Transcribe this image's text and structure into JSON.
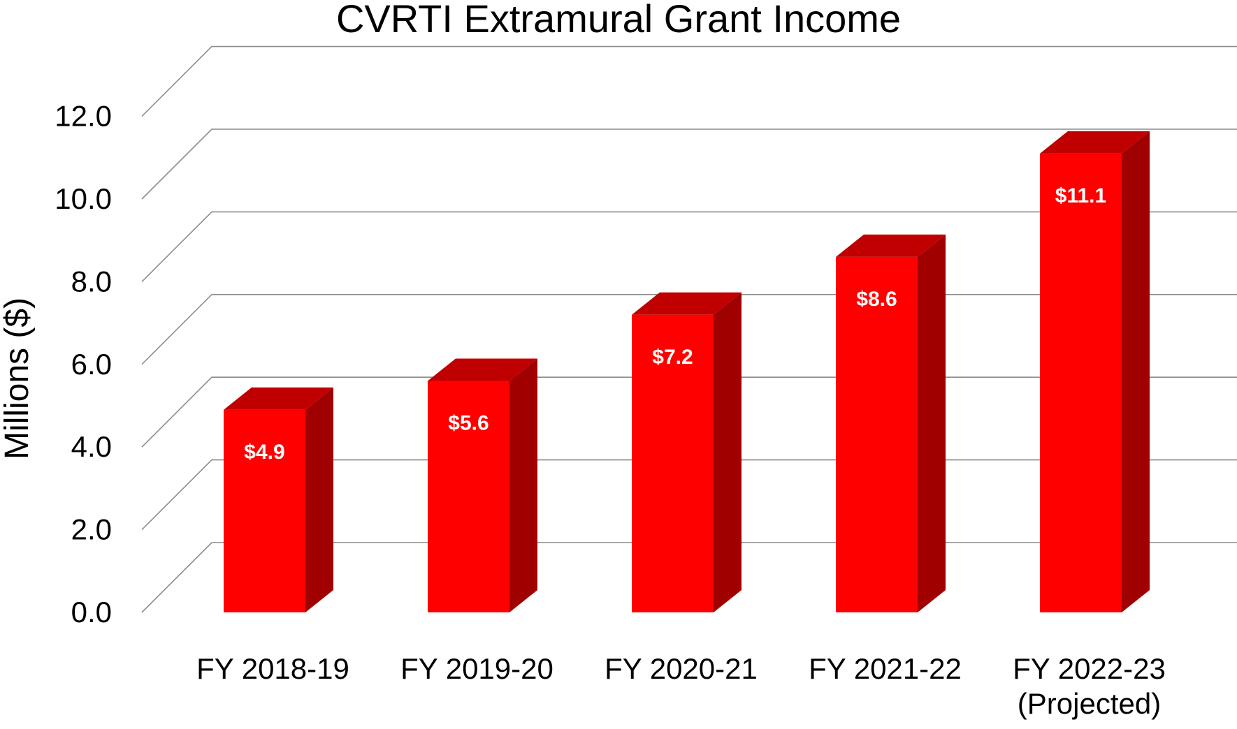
{
  "chart_data": {
    "type": "bar",
    "title": "CVRTI Extramural Grant Income",
    "xlabel": "",
    "ylabel": "Millions ($)",
    "ylim": [
      0,
      12
    ],
    "y_ticks": [
      "0.0",
      "2.0",
      "4.0",
      "6.0",
      "8.0",
      "10.0",
      "12.0"
    ],
    "grid": true,
    "three_d": true,
    "categories": [
      [
        "FY 2018-19"
      ],
      [
        "FY 2019-20"
      ],
      [
        "FY 2020-21"
      ],
      [
        "FY 2021-22"
      ],
      [
        "FY 2022-23",
        "(Projected)"
      ]
    ],
    "series": [
      {
        "values": [
          4.9,
          5.6,
          7.2,
          8.6,
          11.1
        ],
        "data_labels": [
          "$4.9",
          "$5.6",
          "$7.2",
          "$8.6",
          "$11.1"
        ],
        "color": "#ff0000",
        "top_color": "#c00000",
        "side_color": "#a00000"
      }
    ]
  }
}
